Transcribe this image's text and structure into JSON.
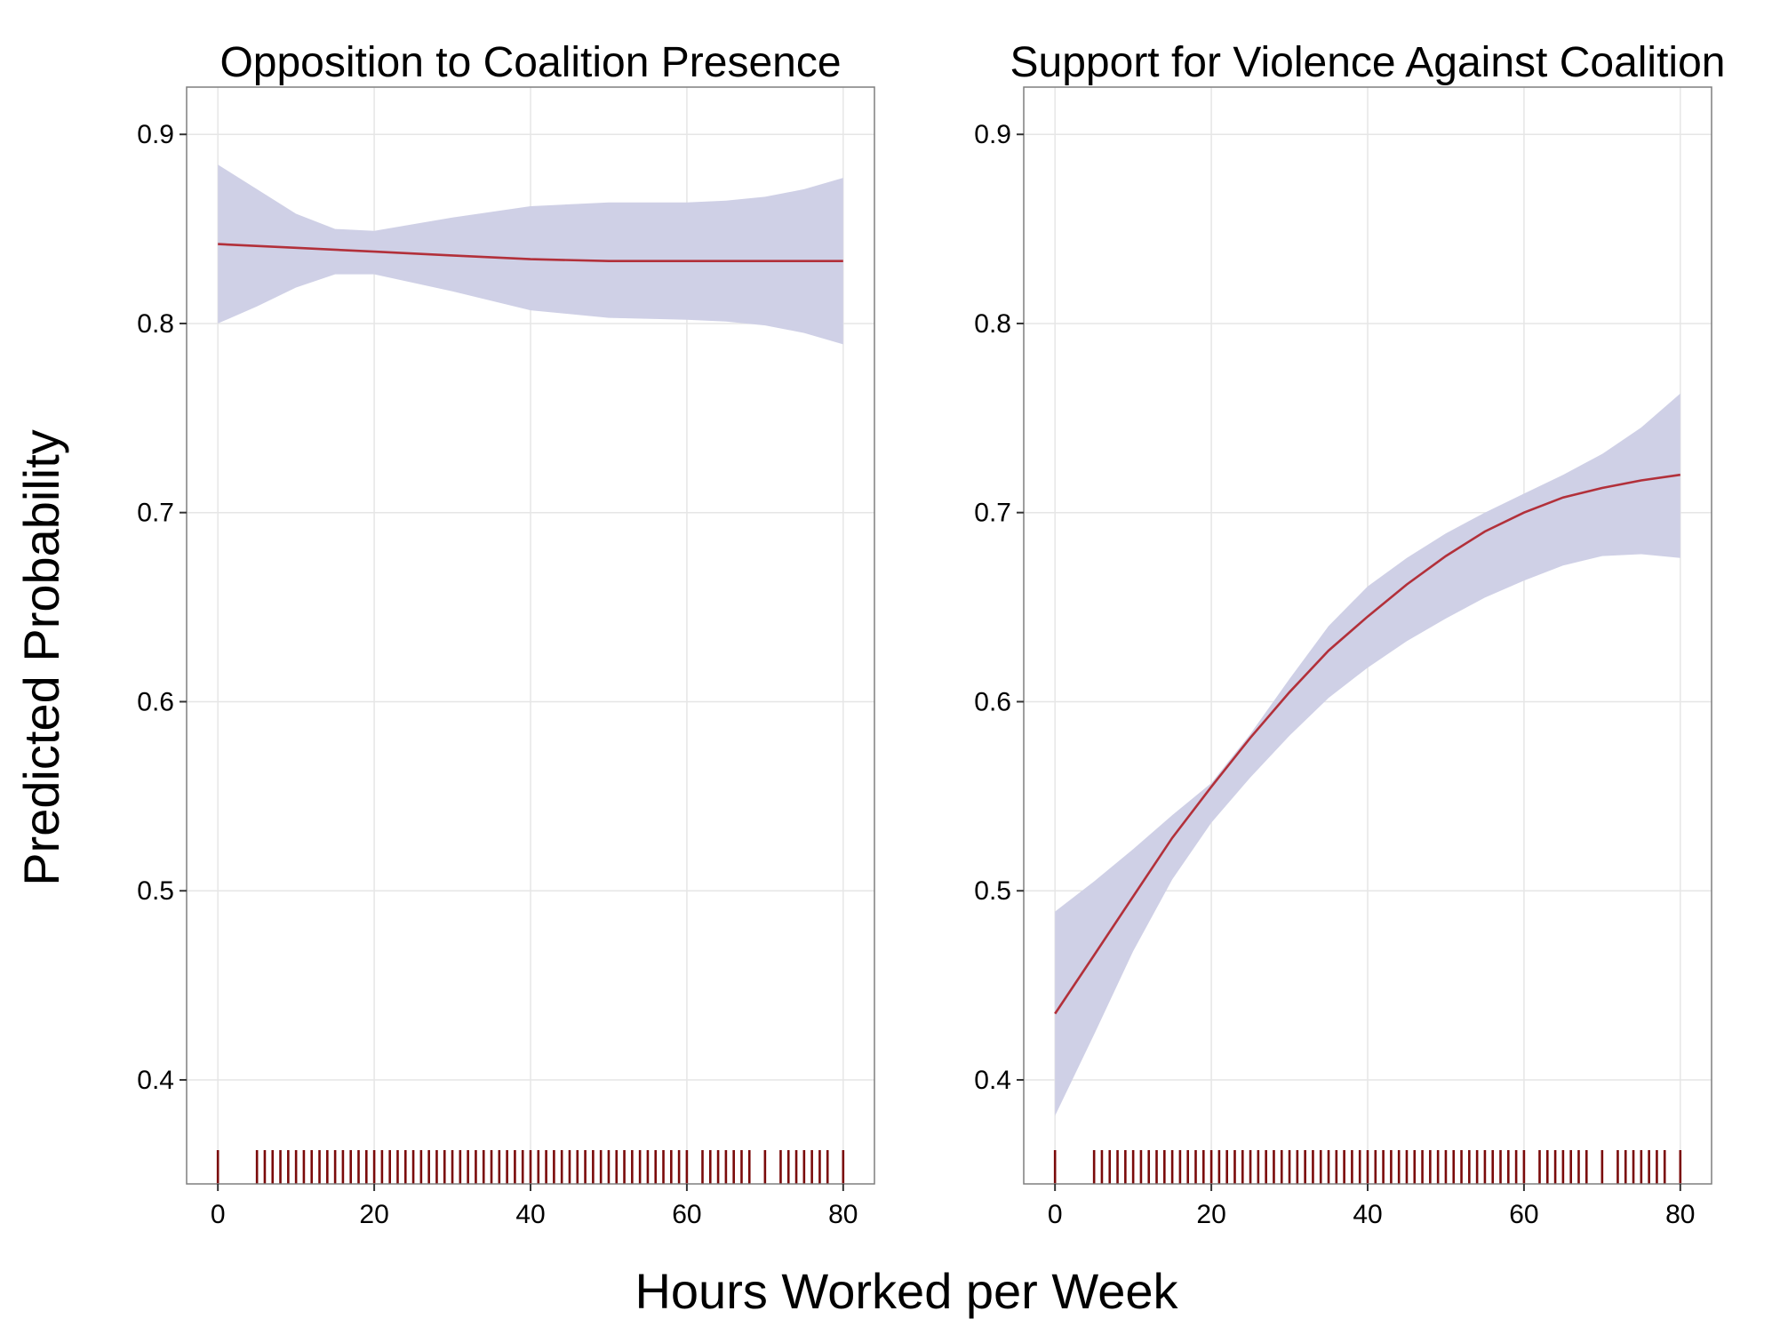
{
  "figure": {
    "x_label": "Hours Worked per Week",
    "y_label": "Predicted Probability"
  },
  "colors": {
    "ribbon": "#cfd0e6",
    "line": "#b2303a",
    "rug": "#7a0a0a",
    "grid": "#e6e6e6",
    "border": "#7f7f7f"
  },
  "chart_data": [
    {
      "type": "line",
      "title": "Opposition to Coalition Presence",
      "xlabel": "Hours Worked per Week",
      "ylabel": "Predicted Probability",
      "xlim": [
        -4,
        84
      ],
      "ylim": [
        0.345,
        0.925
      ],
      "x_ticks": [
        0,
        20,
        40,
        60,
        80
      ],
      "y_ticks": [
        0.4,
        0.5,
        0.6,
        0.7,
        0.8,
        0.9
      ],
      "x_tick_labels": [
        "0",
        "20",
        "40",
        "60",
        "80"
      ],
      "y_tick_labels": [
        "0.4",
        "0.5",
        "0.6",
        "0.7",
        "0.8",
        "0.9"
      ],
      "grid": true,
      "fit": {
        "x": [
          0,
          10,
          20,
          30,
          40,
          50,
          60,
          70,
          80
        ],
        "y": [
          0.842,
          0.84,
          0.838,
          0.836,
          0.834,
          0.833,
          0.833,
          0.833,
          0.833
        ]
      },
      "ci": {
        "x": [
          0,
          5,
          10,
          15,
          20,
          30,
          40,
          50,
          60,
          65,
          70,
          75,
          80
        ],
        "lower": [
          0.8,
          0.809,
          0.819,
          0.826,
          0.826,
          0.817,
          0.807,
          0.803,
          0.802,
          0.801,
          0.799,
          0.795,
          0.789
        ],
        "upper": [
          0.884,
          0.871,
          0.858,
          0.85,
          0.849,
          0.856,
          0.862,
          0.864,
          0.864,
          0.865,
          0.867,
          0.871,
          0.877
        ]
      },
      "rug_x": [
        0,
        5,
        6,
        7,
        8,
        9,
        10,
        11,
        12,
        13,
        14,
        15,
        16,
        17,
        18,
        19,
        20,
        21,
        22,
        23,
        24,
        25,
        26,
        27,
        28,
        29,
        30,
        31,
        32,
        33,
        34,
        35,
        36,
        37,
        38,
        39,
        40,
        41,
        42,
        43,
        44,
        45,
        46,
        47,
        48,
        49,
        50,
        51,
        52,
        53,
        54,
        55,
        56,
        57,
        58,
        59,
        60,
        62,
        63,
        64,
        65,
        66,
        67,
        68,
        70,
        72,
        73,
        74,
        75,
        76,
        77,
        78,
        80
      ]
    },
    {
      "type": "line",
      "title": "Support for Violence Against Coalition",
      "xlabel": "Hours Worked per Week",
      "ylabel": "Predicted Probability",
      "xlim": [
        -4,
        84
      ],
      "ylim": [
        0.345,
        0.925
      ],
      "x_ticks": [
        0,
        20,
        40,
        60,
        80
      ],
      "y_ticks": [
        0.4,
        0.5,
        0.6,
        0.7,
        0.8,
        0.9
      ],
      "x_tick_labels": [
        "0",
        "20",
        "40",
        "60",
        "80"
      ],
      "y_tick_labels": [
        "0.4",
        "0.5",
        "0.6",
        "0.7",
        "0.8",
        "0.9"
      ],
      "grid": true,
      "fit": {
        "x": [
          0,
          5,
          10,
          15,
          20,
          25,
          30,
          35,
          40,
          45,
          50,
          55,
          60,
          65,
          70,
          75,
          80
        ],
        "y": [
          0.435,
          0.466,
          0.497,
          0.528,
          0.555,
          0.581,
          0.605,
          0.627,
          0.645,
          0.662,
          0.677,
          0.69,
          0.7,
          0.708,
          0.713,
          0.717,
          0.72
        ]
      },
      "ci": {
        "x": [
          0,
          5,
          10,
          15,
          20,
          25,
          30,
          35,
          40,
          45,
          50,
          55,
          60,
          65,
          70,
          75,
          80
        ],
        "lower": [
          0.381,
          0.424,
          0.468,
          0.506,
          0.536,
          0.56,
          0.582,
          0.602,
          0.618,
          0.632,
          0.644,
          0.655,
          0.664,
          0.672,
          0.677,
          0.678,
          0.676
        ],
        "upper": [
          0.489,
          0.505,
          0.522,
          0.54,
          0.557,
          0.583,
          0.612,
          0.64,
          0.661,
          0.676,
          0.689,
          0.7,
          0.71,
          0.72,
          0.731,
          0.745,
          0.763
        ]
      },
      "rug_x": [
        0,
        5,
        6,
        7,
        8,
        9,
        10,
        11,
        12,
        13,
        14,
        15,
        16,
        17,
        18,
        19,
        20,
        21,
        22,
        23,
        24,
        25,
        26,
        27,
        28,
        29,
        30,
        31,
        32,
        33,
        34,
        35,
        36,
        37,
        38,
        39,
        40,
        41,
        42,
        43,
        44,
        45,
        46,
        47,
        48,
        49,
        50,
        51,
        52,
        53,
        54,
        55,
        56,
        57,
        58,
        59,
        60,
        62,
        63,
        64,
        65,
        66,
        67,
        68,
        70,
        72,
        73,
        74,
        75,
        76,
        77,
        78,
        80
      ]
    }
  ]
}
